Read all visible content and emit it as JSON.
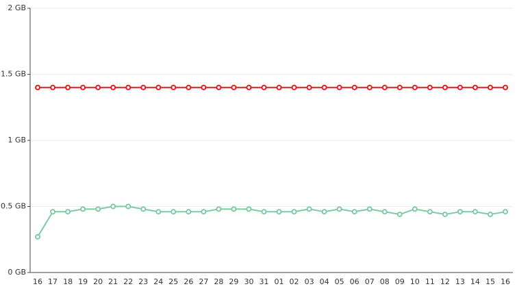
{
  "chart_data": {
    "type": "line",
    "categories": [
      "16",
      "17",
      "18",
      "19",
      "20",
      "21",
      "22",
      "23",
      "24",
      "25",
      "26",
      "27",
      "28",
      "29",
      "30",
      "31",
      "01",
      "02",
      "03",
      "04",
      "05",
      "06",
      "07",
      "08",
      "09",
      "10",
      "11",
      "12",
      "13",
      "14",
      "15",
      "16"
    ],
    "series": [
      {
        "color": "#e41a1c",
        "values": [
          1.4,
          1.4,
          1.4,
          1.4,
          1.4,
          1.4,
          1.4,
          1.4,
          1.4,
          1.4,
          1.4,
          1.4,
          1.4,
          1.4,
          1.4,
          1.4,
          1.4,
          1.4,
          1.4,
          1.4,
          1.4,
          1.4,
          1.4,
          1.4,
          1.4,
          1.4,
          1.4,
          1.4,
          1.4,
          1.4,
          1.4,
          1.4
        ]
      },
      {
        "color": "#7ccba2",
        "values": [
          0.27,
          0.46,
          0.46,
          0.48,
          0.48,
          0.5,
          0.5,
          0.48,
          0.46,
          0.46,
          0.46,
          0.46,
          0.48,
          0.48,
          0.48,
          0.46,
          0.46,
          0.46,
          0.48,
          0.46,
          0.48,
          0.46,
          0.48,
          0.46,
          0.44,
          0.48,
          0.46,
          0.44,
          0.46,
          0.46,
          0.44,
          0.46
        ]
      }
    ],
    "ylim": [
      0,
      2
    ],
    "yticks": [
      {
        "value": 0,
        "label": "0 GB"
      },
      {
        "value": 0.5,
        "label": "0.5 GB"
      },
      {
        "value": 1,
        "label": "1 GB"
      },
      {
        "value": 1.5,
        "label": "1.5 GB"
      },
      {
        "value": 2,
        "label": "2 GB"
      }
    ],
    "grid": true
  }
}
